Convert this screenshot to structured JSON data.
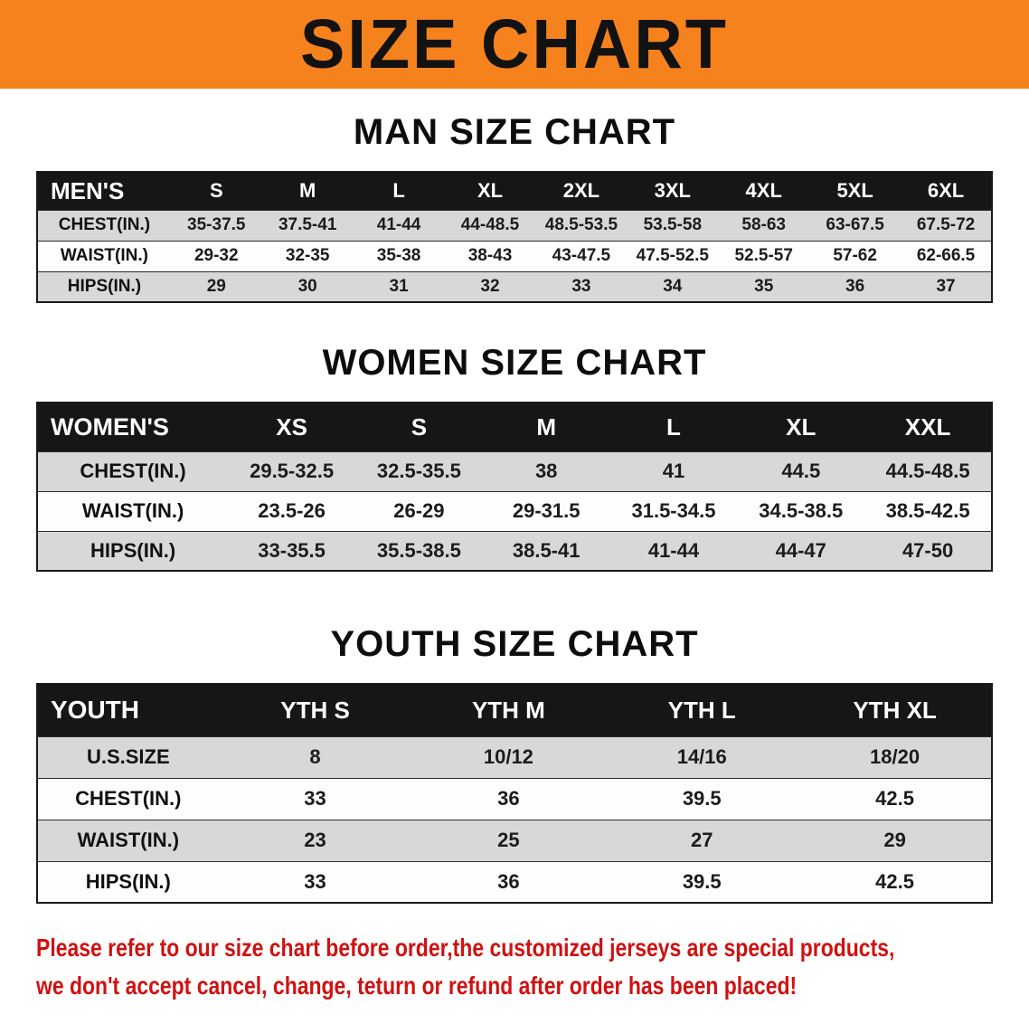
{
  "banner": {
    "title": "SIZE CHART"
  },
  "colors": {
    "accent-orange": "#F6821E",
    "header-black": "#161616",
    "row-gray": "#D8D8D8",
    "disclaimer-red": "#D01111"
  },
  "sections": [
    {
      "heading": "MAN SIZE CHART",
      "table": {
        "header": [
          "MEN'S",
          "S",
          "M",
          "L",
          "XL",
          "2XL",
          "3XL",
          "4XL",
          "5XL",
          "6XL"
        ],
        "rows": [
          [
            "CHEST(IN.)",
            "35-37.5",
            "37.5-41",
            "41-44",
            "44-48.5",
            "48.5-53.5",
            "53.5-58",
            "58-63",
            "63-67.5",
            "67.5-72"
          ],
          [
            "WAIST(IN.)",
            "29-32",
            "32-35",
            "35-38",
            "38-43",
            "43-47.5",
            "47.5-52.5",
            "52.5-57",
            "57-62",
            "62-66.5"
          ],
          [
            "HIPS(IN.)",
            "29",
            "30",
            "31",
            "32",
            "33",
            "34",
            "35",
            "36",
            "37"
          ]
        ]
      }
    },
    {
      "heading": "WOMEN SIZE CHART",
      "table": {
        "header": [
          "WOMEN'S",
          "XS",
          "S",
          "M",
          "L",
          "XL",
          "XXL"
        ],
        "rows": [
          [
            "CHEST(IN.)",
            "29.5-32.5",
            "32.5-35.5",
            "38",
            "41",
            "44.5",
            "44.5-48.5"
          ],
          [
            "WAIST(IN.)",
            "23.5-26",
            "26-29",
            "29-31.5",
            "31.5-34.5",
            "34.5-38.5",
            "38.5-42.5"
          ],
          [
            "HIPS(IN.)",
            "33-35.5",
            "35.5-38.5",
            "38.5-41",
            "41-44",
            "44-47",
            "47-50"
          ]
        ]
      }
    },
    {
      "heading": "YOUTH SIZE CHART",
      "table": {
        "header": [
          "YOUTH",
          "YTH S",
          "YTH M",
          "YTH L",
          "YTH XL"
        ],
        "rows": [
          [
            "U.S.SIZE",
            "8",
            "10/12",
            "14/16",
            "18/20"
          ],
          [
            "CHEST(IN.)",
            "33",
            "36",
            "39.5",
            "42.5"
          ],
          [
            "WAIST(IN.)",
            "23",
            "25",
            "27",
            "29"
          ],
          [
            "HIPS(IN.)",
            "33",
            "36",
            "39.5",
            "42.5"
          ]
        ]
      }
    }
  ],
  "disclaimer": {
    "line1": "Please refer to our size chart before order,the customized jerseys are special products,",
    "line2": "we don't accept cancel, change, teturn or refund after order has been placed!"
  }
}
